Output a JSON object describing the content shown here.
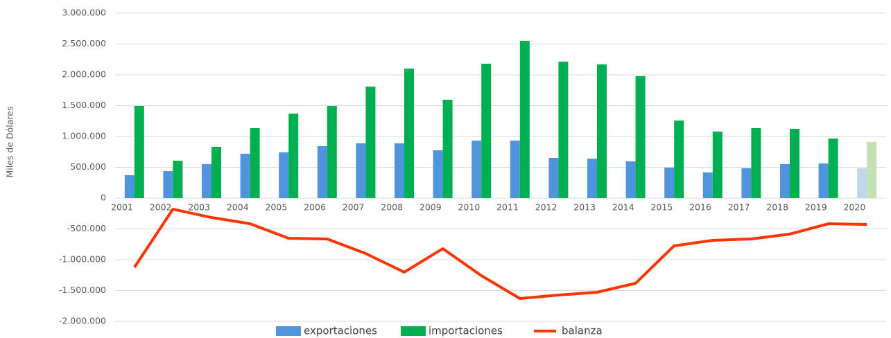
{
  "chart_data": {
    "type": "bar-line",
    "y_label": "Miles de Dólares",
    "categories": [
      "2001",
      "2002",
      "2003",
      "2004",
      "2005",
      "2006",
      "2007",
      "2008",
      "2009",
      "2010",
      "2011",
      "2012",
      "2013",
      "2014",
      "2015",
      "2016",
      "2017",
      "2018",
      "2019",
      "2020"
    ],
    "series": [
      {
        "name": "exportaciones",
        "type": "bar",
        "color": "#4f94dc",
        "colors": [
          "#4f94dc",
          "#4f94dc",
          "#4f94dc",
          "#4f94dc",
          "#4f94dc",
          "#4f94dc",
          "#4f94dc",
          "#4f94dc",
          "#4f94dc",
          "#4f94dc",
          "#4f94dc",
          "#4f94dc",
          "#4f94dc",
          "#4f94dc",
          "#4f94dc",
          "#4f94dc",
          "#4f94dc",
          "#4f94dc",
          "#4f94dc",
          "#bdd7ee"
        ],
        "values": [
          371000,
          438000,
          550000,
          719000,
          742000,
          843000,
          888000,
          888000,
          775000,
          933000,
          933000,
          652000,
          640000,
          596000,
          494000,
          416000,
          483000,
          551000,
          562000,
          483000
        ]
      },
      {
        "name": "importaciones",
        "type": "bar",
        "color": "#00b050",
        "colors": [
          "#00b050",
          "#00b050",
          "#00b050",
          "#00b050",
          "#00b050",
          "#00b050",
          "#00b050",
          "#00b050",
          "#00b050",
          "#00b050",
          "#00b050",
          "#00b050",
          "#00b050",
          "#00b050",
          "#00b050",
          "#00b050",
          "#00b050",
          "#00b050",
          "#00b050",
          "#c5e0b4"
        ],
        "values": [
          1494000,
          607000,
          831000,
          1135000,
          1371000,
          1494000,
          1809000,
          2101000,
          1596000,
          2180000,
          2551000,
          2213000,
          2169000,
          1978000,
          1258000,
          1079000,
          1135000,
          1124000,
          966000,
          910000
        ]
      },
      {
        "name": "balanza",
        "type": "line",
        "color": "#ff3300",
        "values": [
          -1124000,
          -180000,
          -315000,
          -416000,
          -652000,
          -663000,
          -899000,
          -1202000,
          -820000,
          -1258000,
          -1629000,
          -1573000,
          -1528000,
          -1382000,
          -775000,
          -685000,
          -663000,
          -584000,
          -416000,
          -427000
        ]
      }
    ],
    "ylim": [
      -2000000,
      3000000
    ],
    "yticks": [
      {
        "value": -2000000,
        "label": "-2.000.000"
      },
      {
        "value": -1500000,
        "label": "-1.500.000"
      },
      {
        "value": -1000000,
        "label": "-1.000.000"
      },
      {
        "value": -500000,
        "label": "-500.000"
      },
      0,
      {
        "value": 500000,
        "label": "500.000"
      },
      {
        "value": 1000000,
        "label": "1.000.000"
      },
      {
        "value": 1500000,
        "label": "1.500.000"
      },
      {
        "value": 2000000,
        "label": "2.000.000"
      },
      {
        "value": 2500000,
        "label": "2.500.000"
      },
      {
        "value": 3000000,
        "label": "3.000.000"
      }
    ],
    "grid": true,
    "legend": "bottom"
  }
}
